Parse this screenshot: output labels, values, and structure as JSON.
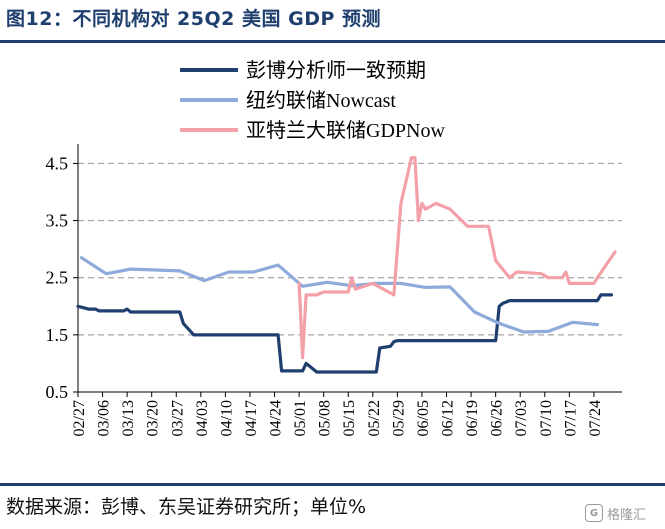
{
  "title": "图12：不同机构对 25Q2 美国 GDP 预测",
  "source": "数据来源：彭博、东吴证券研究所；单位%",
  "watermark": {
    "icon": "gelonghui-logo-icon",
    "text": "格隆汇"
  },
  "chart_data": {
    "type": "line",
    "title": "图12：不同机构对 25Q2 美国 GDP 预测",
    "xlabel": "",
    "ylabel": "",
    "unit": "%",
    "ylim": [
      0.5,
      4.7
    ],
    "yticks": [
      0.5,
      1.5,
      2.5,
      3.5,
      4.5
    ],
    "ytick_labels": [
      "0.5",
      "1.5",
      "2.5",
      "3.5",
      "4.5"
    ],
    "xlim": [
      "2025-02-27",
      "2025-08-01"
    ],
    "xtick_labels": [
      "02/27",
      "03/06",
      "03/13",
      "03/20",
      "03/27",
      "04/03",
      "04/10",
      "04/17",
      "04/24",
      "05/01",
      "05/08",
      "05/15",
      "05/22",
      "05/29",
      "06/05",
      "06/12",
      "06/19",
      "06/26",
      "07/03",
      "07/10",
      "07/17",
      "07/24"
    ],
    "xticks": [
      "2025-02-27",
      "2025-03-06",
      "2025-03-13",
      "2025-03-20",
      "2025-03-27",
      "2025-04-03",
      "2025-04-10",
      "2025-04-17",
      "2025-04-24",
      "2025-05-01",
      "2025-05-08",
      "2025-05-15",
      "2025-05-22",
      "2025-05-29",
      "2025-06-05",
      "2025-06-12",
      "2025-06-19",
      "2025-06-26",
      "2025-07-03",
      "2025-07-10",
      "2025-07-17",
      "2025-07-24"
    ],
    "grid": "horizontal-dashed",
    "legend_position": "top-center",
    "series": [
      {
        "name": "彭博分析师一致预期",
        "color": "#1f3f6e",
        "points": [
          [
            "2025-02-27",
            2.0
          ],
          [
            "2025-03-02",
            1.95
          ],
          [
            "2025-03-04",
            1.95
          ],
          [
            "2025-03-05",
            1.92
          ],
          [
            "2025-03-12",
            1.92
          ],
          [
            "2025-03-13",
            1.95
          ],
          [
            "2025-03-14",
            1.9
          ],
          [
            "2025-03-28",
            1.9
          ],
          [
            "2025-03-29",
            1.7
          ],
          [
            "2025-04-01",
            1.5
          ],
          [
            "2025-04-25",
            1.5
          ],
          [
            "2025-04-26",
            0.87
          ],
          [
            "2025-05-02",
            0.87
          ],
          [
            "2025-05-03",
            1.0
          ],
          [
            "2025-05-06",
            0.85
          ],
          [
            "2025-05-23",
            0.85
          ],
          [
            "2025-05-24",
            1.27
          ],
          [
            "2025-05-27",
            1.3
          ],
          [
            "2025-05-28",
            1.38
          ],
          [
            "2025-05-29",
            1.4
          ],
          [
            "2025-06-26",
            1.4
          ],
          [
            "2025-06-27",
            2.0
          ],
          [
            "2025-06-28",
            2.05
          ],
          [
            "2025-06-30",
            2.1
          ],
          [
            "2025-07-25",
            2.1
          ],
          [
            "2025-07-26",
            2.2
          ],
          [
            "2025-07-29",
            2.2
          ]
        ]
      },
      {
        "name": "纽约联储Nowcast",
        "color": "#8eaadb",
        "points": [
          [
            "2025-02-28",
            2.85
          ],
          [
            "2025-03-07",
            2.57
          ],
          [
            "2025-03-14",
            2.65
          ],
          [
            "2025-03-28",
            2.62
          ],
          [
            "2025-04-04",
            2.45
          ],
          [
            "2025-04-11",
            2.6
          ],
          [
            "2025-04-18",
            2.6
          ],
          [
            "2025-04-25",
            2.72
          ],
          [
            "2025-05-02",
            2.35
          ],
          [
            "2025-05-09",
            2.42
          ],
          [
            "2025-05-16",
            2.36
          ],
          [
            "2025-05-23",
            2.4
          ],
          [
            "2025-05-30",
            2.4
          ],
          [
            "2025-06-06",
            2.33
          ],
          [
            "2025-06-13",
            2.34
          ],
          [
            "2025-06-20",
            1.9
          ],
          [
            "2025-06-27",
            1.7
          ],
          [
            "2025-07-04",
            1.55
          ],
          [
            "2025-07-11",
            1.56
          ],
          [
            "2025-07-18",
            1.72
          ],
          [
            "2025-07-25",
            1.68
          ]
        ]
      },
      {
        "name": "亚特兰大联储GDPNow",
        "color": "#f4a0a8",
        "points": [
          [
            "2025-05-01",
            2.4
          ],
          [
            "2025-05-02",
            1.1
          ],
          [
            "2025-05-03",
            2.2
          ],
          [
            "2025-05-06",
            2.2
          ],
          [
            "2025-05-08",
            2.25
          ],
          [
            "2025-05-15",
            2.25
          ],
          [
            "2025-05-16",
            2.5
          ],
          [
            "2025-05-17",
            2.3
          ],
          [
            "2025-05-22",
            2.4
          ],
          [
            "2025-05-28",
            2.2
          ],
          [
            "2025-05-29",
            3.0
          ],
          [
            "2025-05-30",
            3.8
          ],
          [
            "2025-06-02",
            4.6
          ],
          [
            "2025-06-03",
            4.6
          ],
          [
            "2025-06-04",
            3.5
          ],
          [
            "2025-06-05",
            3.8
          ],
          [
            "2025-06-06",
            3.7
          ],
          [
            "2025-06-09",
            3.8
          ],
          [
            "2025-06-13",
            3.7
          ],
          [
            "2025-06-18",
            3.4
          ],
          [
            "2025-06-24",
            3.4
          ],
          [
            "2025-06-26",
            2.8
          ],
          [
            "2025-06-30",
            2.5
          ],
          [
            "2025-07-02",
            2.6
          ],
          [
            "2025-07-09",
            2.57
          ],
          [
            "2025-07-11",
            2.5
          ],
          [
            "2025-07-15",
            2.5
          ],
          [
            "2025-07-16",
            2.6
          ],
          [
            "2025-07-17",
            2.4
          ],
          [
            "2025-07-24",
            2.4
          ],
          [
            "2025-07-25",
            2.5
          ],
          [
            "2025-07-30",
            2.95
          ]
        ]
      }
    ]
  }
}
